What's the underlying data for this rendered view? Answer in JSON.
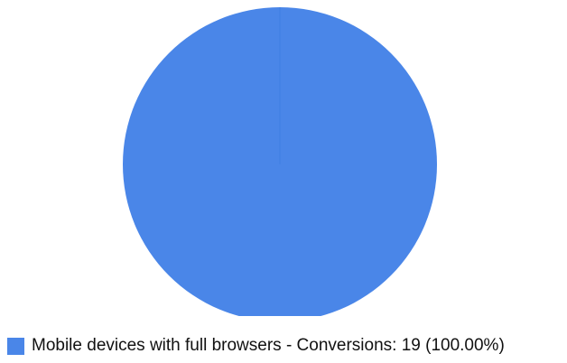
{
  "chart_data": {
    "type": "pie",
    "title": "",
    "slices": [
      {
        "label": "Mobile devices with full browsers",
        "metric": "Conversions",
        "value": 19,
        "percent": 100.0,
        "color": "#4a86e8"
      }
    ],
    "legend": {
      "placement": "bottom-left",
      "items": [
        {
          "text": "Mobile devices with full browsers - Conversions: 19 (100.00%)",
          "color": "#4a86e8"
        }
      ]
    }
  }
}
